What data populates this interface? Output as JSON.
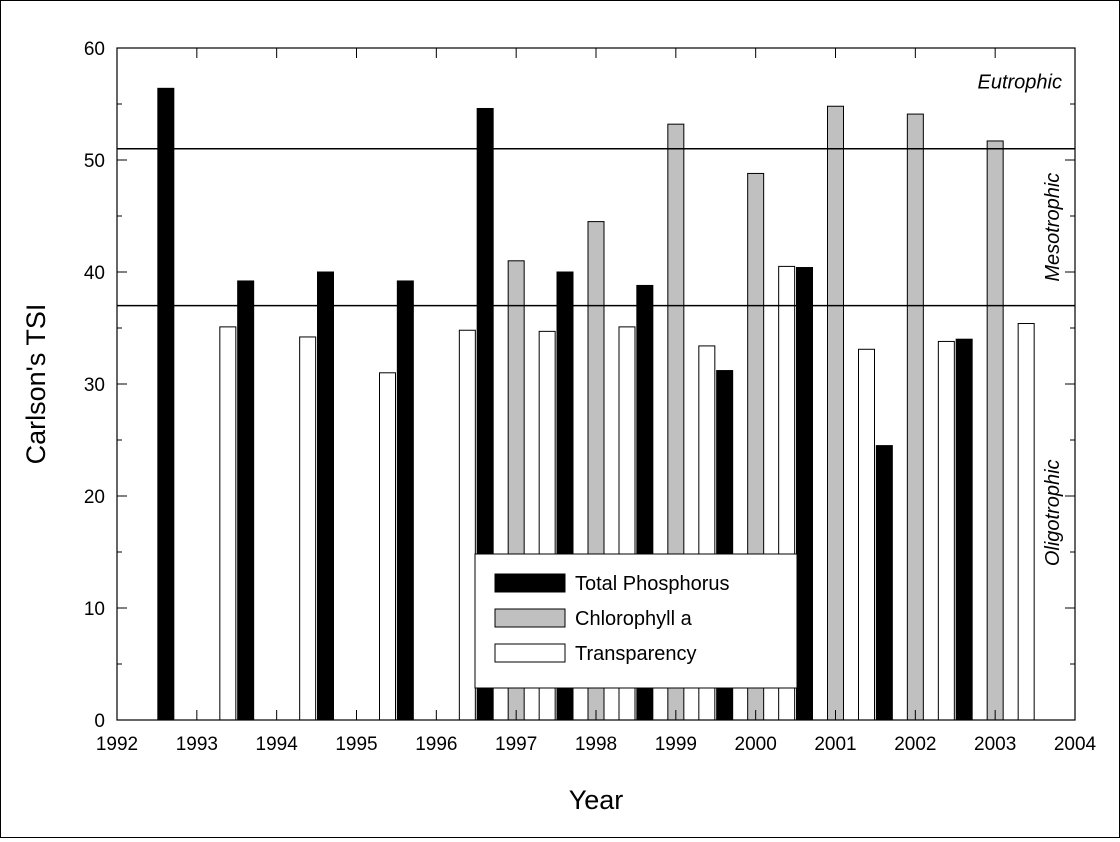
{
  "chart_data": {
    "type": "bar",
    "title": "",
    "xlabel": "Year",
    "ylabel": "Carlson's TSI",
    "xlim": [
      1992,
      2004
    ],
    "ylim": [
      0,
      60
    ],
    "x_ticks": [
      "1992",
      "1993",
      "1994",
      "1995",
      "1996",
      "1997",
      "1998",
      "1999",
      "2000",
      "2001",
      "2002",
      "2003",
      "2004"
    ],
    "y_ticks": [
      "0",
      "10",
      "20",
      "30",
      "40",
      "50",
      "60"
    ],
    "categories": [
      1993,
      1994,
      1995,
      1996,
      1997,
      1998,
      1999,
      2000,
      2001,
      2002,
      2003
    ],
    "series": [
      {
        "name": "Total Phosphorus",
        "color": "#000000",
        "values": [
          56.4,
          39.2,
          40.0,
          39.2,
          54.6,
          40.0,
          38.8,
          31.2,
          40.4,
          24.5,
          34.0
        ]
      },
      {
        "name": "Chlorophyll a",
        "color": "#c0c0c0",
        "values": [
          null,
          null,
          null,
          null,
          41.0,
          44.5,
          53.2,
          48.8,
          54.8,
          54.1,
          51.7
        ]
      },
      {
        "name": "Transparency",
        "color": "#ffffff",
        "values": [
          35.1,
          34.2,
          31.0,
          34.8,
          34.7,
          35.1,
          33.4,
          40.5,
          33.1,
          33.8,
          35.4
        ]
      }
    ],
    "reference_lines": [
      51,
      37
    ],
    "zones": [
      {
        "label": "Eutrophic",
        "value": 57,
        "orientation": "horizontal"
      },
      {
        "label": "Mesotrophic",
        "value": 44,
        "orientation": "vertical"
      },
      {
        "label": "Oligotrophic",
        "value": 18.5,
        "orientation": "vertical"
      }
    ],
    "legend_position": "bottom-center",
    "grid": false
  }
}
